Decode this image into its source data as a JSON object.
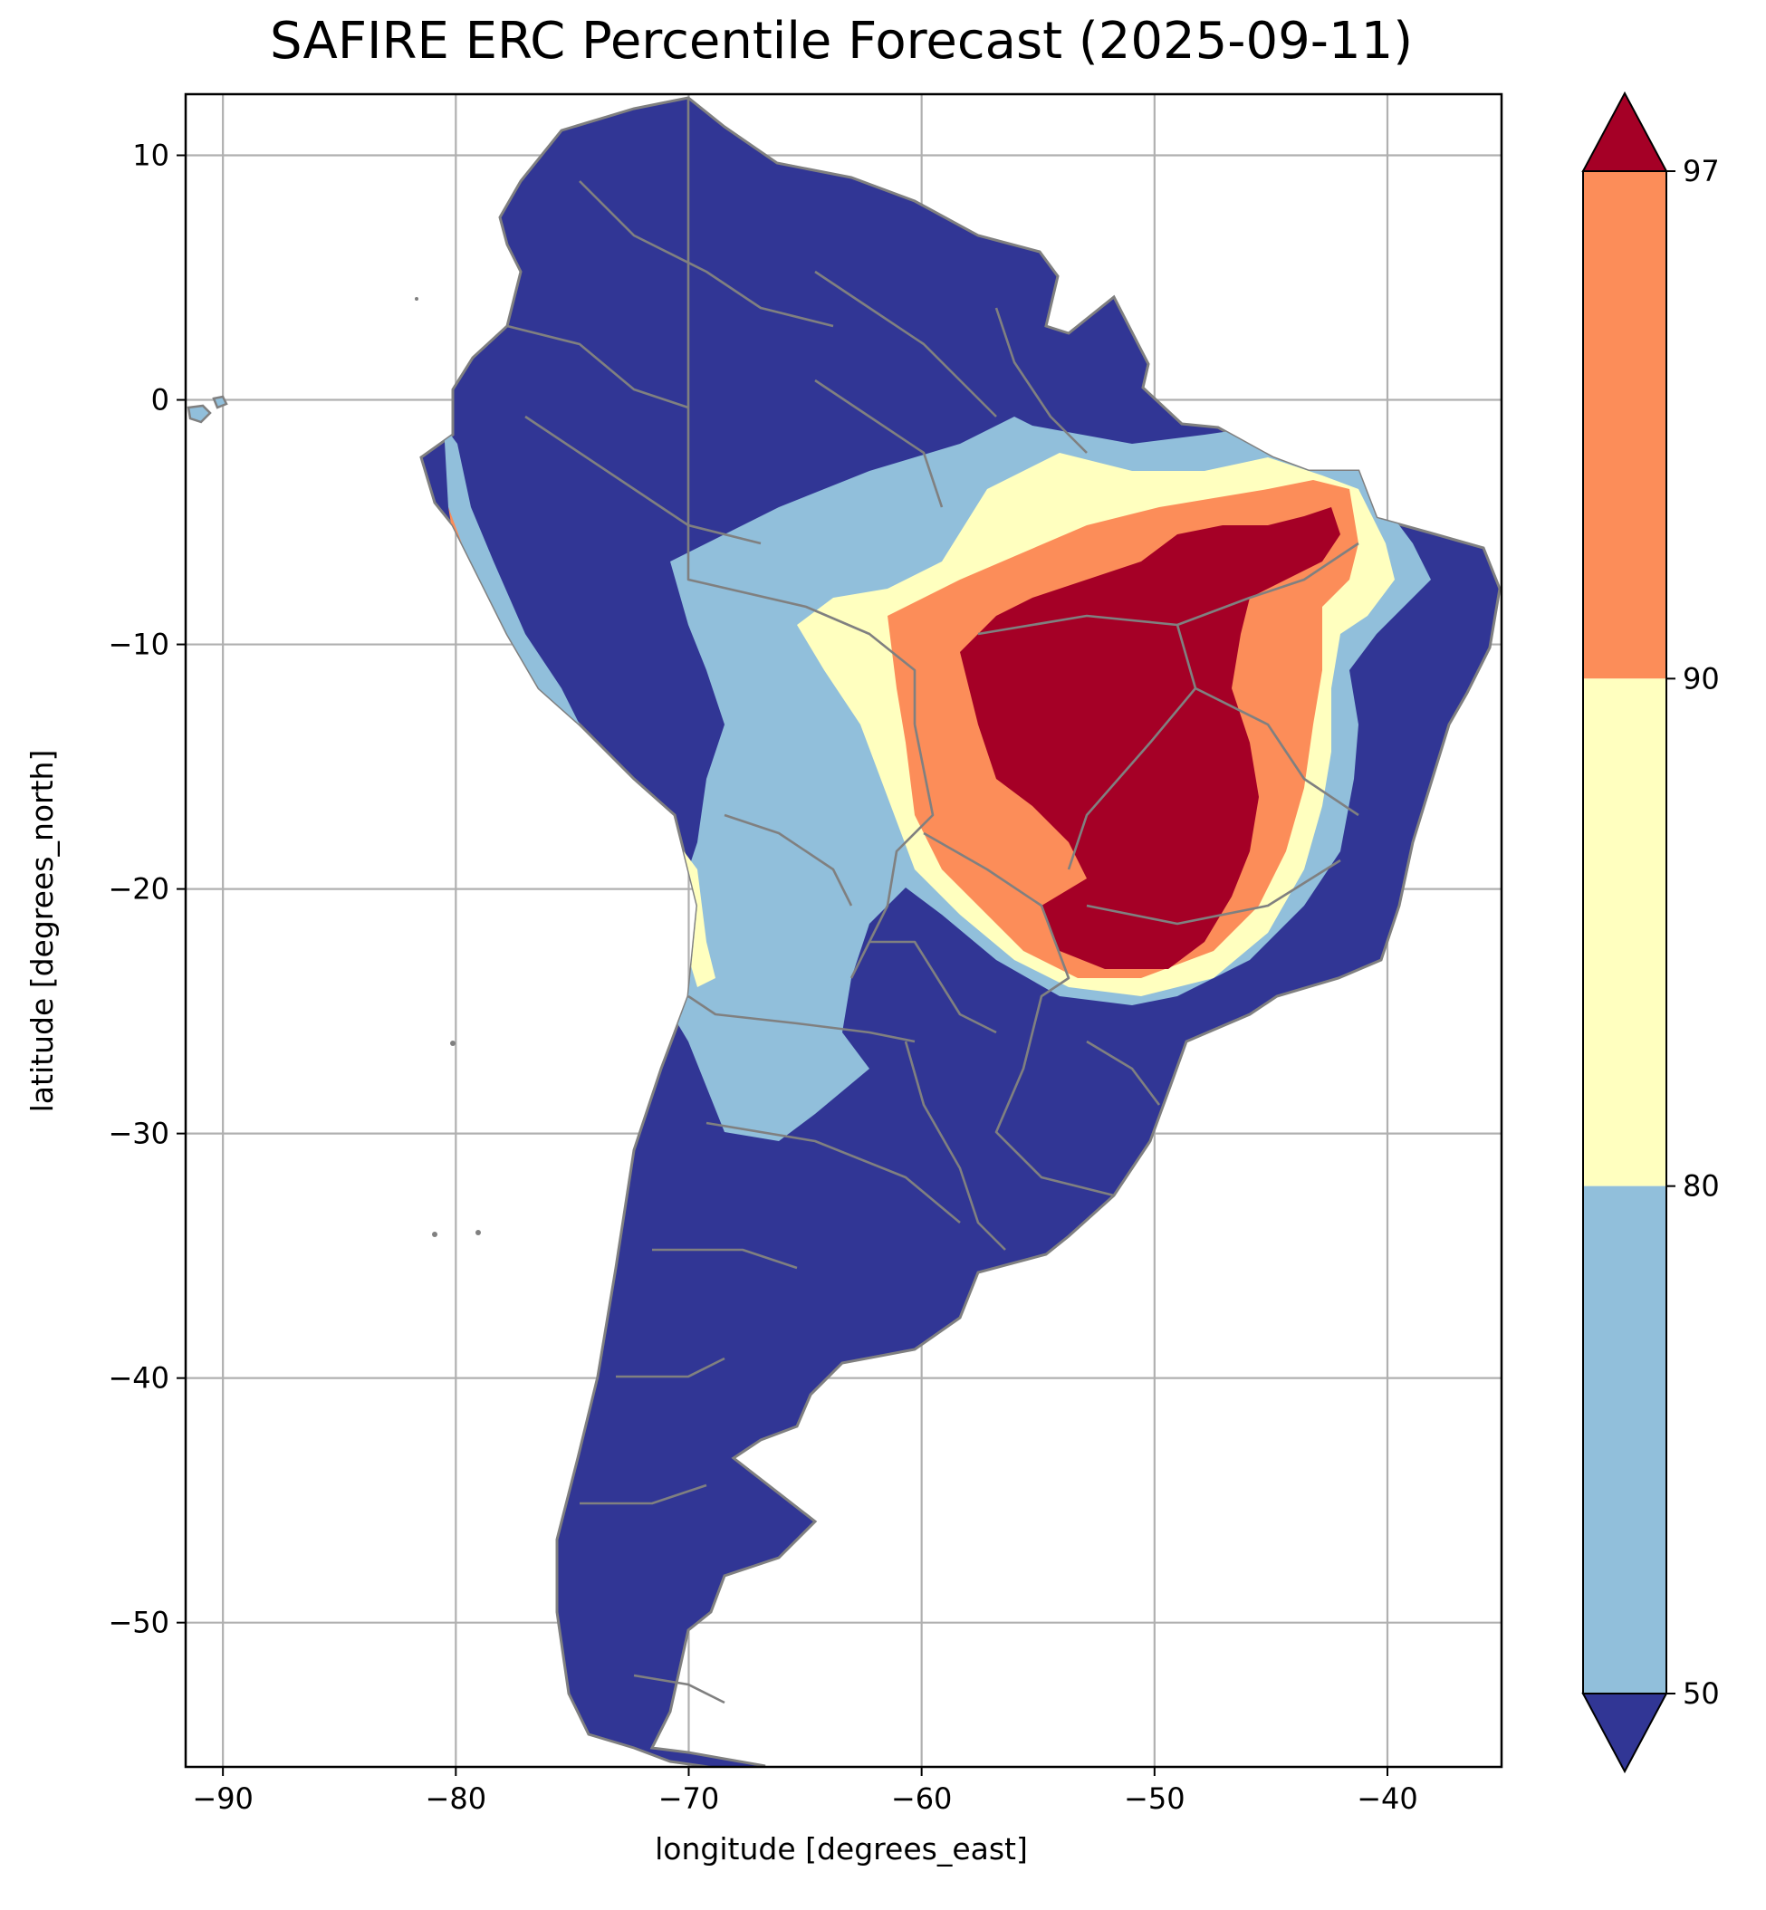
{
  "title": "SAFIRE ERC Percentile Forecast (2025-09-11)",
  "chart_data": {
    "type": "heatmap",
    "title": "SAFIRE ERC Percentile Forecast (2025-09-11)",
    "xlabel": "longitude [degrees_east]",
    "ylabel": "latitude [degrees_north]",
    "xlim": [
      -91.6,
      -35.1
    ],
    "ylim": [
      -55.9,
      12.5
    ],
    "xticks": [
      -90,
      -80,
      -70,
      -60,
      -50,
      -40
    ],
    "yticks": [
      10,
      0,
      -10,
      -20,
      -30,
      -40,
      -50
    ],
    "xtick_labels": [
      "−90",
      "−80",
      "−70",
      "−60",
      "−50",
      "−40"
    ],
    "ytick_labels": [
      "10",
      "0",
      "−10",
      "−20",
      "−30",
      "−40",
      "−50"
    ],
    "grid": true,
    "colorbar": {
      "ticks": [
        50,
        80,
        90,
        97
      ],
      "tick_labels": [
        "50",
        "80",
        "90",
        "97"
      ],
      "extend": "both",
      "bins": [
        {
          "range": "<50",
          "color": "#313695"
        },
        {
          "range": "50-80",
          "color": "#91bfdb"
        },
        {
          "range": "80-90",
          "color": "#ffffbf"
        },
        {
          "range": "90-97",
          "color": "#fc8d59"
        },
        {
          "range": ">97",
          "color": "#a50026"
        }
      ]
    }
  },
  "colors": {
    "below50": "#313695",
    "p50_80": "#91bfdb",
    "p80_90": "#ffffbf",
    "p90_97": "#fc8d59",
    "above97": "#a50026",
    "borders": "#808080",
    "grid": "#b0b0b0"
  }
}
